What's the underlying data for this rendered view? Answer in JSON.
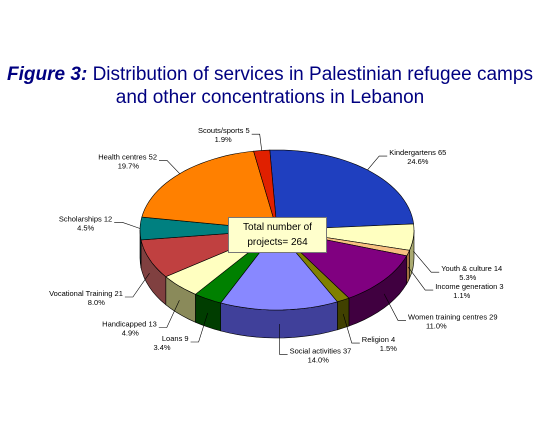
{
  "title": {
    "prefix": "Figure 3:",
    "text": "Distribution of services in Palestinian refugee camps and other concentrations in Lebanon"
  },
  "total_box": {
    "line1": "Total number of",
    "line2": "projects= 264"
  },
  "chart_data": {
    "type": "pie",
    "total": 264,
    "slices": [
      {
        "name": "Kindergartens",
        "value": 65,
        "percent": "24.6%",
        "color": "#1f3fbf",
        "side": "#0f1f6f"
      },
      {
        "name": "Youth & culture",
        "value": 14,
        "percent": "5.3%",
        "color": "#ffffc0",
        "side": "#aaaa70"
      },
      {
        "name": "Income generation",
        "value": 3,
        "percent": "1.1%",
        "color": "#f7c080",
        "side": "#a07040"
      },
      {
        "name": "Women training centres",
        "value": 29,
        "percent": "11.0%",
        "color": "#800080",
        "side": "#400040"
      },
      {
        "name": "Religion",
        "value": 4,
        "percent": "1.5%",
        "color": "#808000",
        "side": "#404000"
      },
      {
        "name": "Social activities",
        "value": 37,
        "percent": "14.0%",
        "color": "#8888ff",
        "side": "#40409a"
      },
      {
        "name": "Loans",
        "value": 9,
        "percent": "3.4%",
        "color": "#008000",
        "side": "#003d00"
      },
      {
        "name": "Handicapped",
        "value": 13,
        "percent": "4.9%",
        "color": "#ffffc0",
        "side": "#8a8a5a"
      },
      {
        "name": "Vocational Training",
        "value": 21,
        "percent": "8.0%",
        "color": "#c04040",
        "side": "#804040"
      },
      {
        "name": "Scholarships",
        "value": 12,
        "percent": "4.5%",
        "color": "#008080",
        "side": "#004040"
      },
      {
        "name": "Health centres",
        "value": 52,
        "percent": "19.7%",
        "color": "#ff8000",
        "side": "#a05000"
      },
      {
        "name": "Scouts/sports",
        "value": 5,
        "percent": "1.9%",
        "color": "#e02000",
        "side": "#801000"
      }
    ]
  }
}
